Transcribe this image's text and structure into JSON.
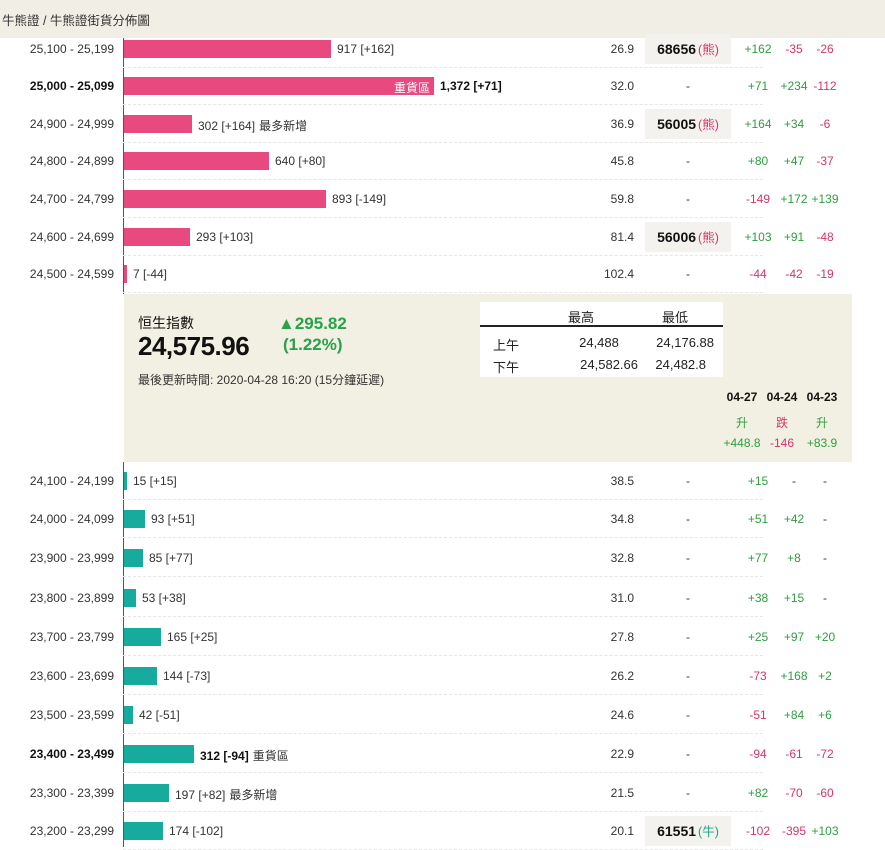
{
  "breadcrumb": "牛熊證 / 牛熊證街貨分佈圖",
  "upper_rows": [
    {
      "range": "25,100 - 25,199",
      "bar": 917,
      "label": "917 [+162]",
      "note": "",
      "bold": false,
      "pct": "26.9",
      "code": "68656",
      "kind": "熊",
      "c1": "+162",
      "c2": "-35",
      "c3": "-26"
    },
    {
      "range": "25,000 - 25,099",
      "bar": 1372,
      "label": "1,372 [+71]",
      "note": "",
      "inbar": "重貨區",
      "bold": true,
      "pct": "32.0",
      "code": "-",
      "kind": "",
      "c1": "+71",
      "c2": "+234",
      "c3": "-112"
    },
    {
      "range": "24,900 - 24,999",
      "bar": 302,
      "label": "302 [+164]",
      "note": "最多新增",
      "bold": false,
      "pct": "36.9",
      "code": "56005",
      "kind": "熊",
      "c1": "+164",
      "c2": "+34",
      "c3": "-6"
    },
    {
      "range": "24,800 - 24,899",
      "bar": 640,
      "label": "640 [+80]",
      "note": "",
      "bold": false,
      "pct": "45.8",
      "code": "-",
      "kind": "",
      "c1": "+80",
      "c2": "+47",
      "c3": "-37"
    },
    {
      "range": "24,700 - 24,799",
      "bar": 893,
      "label": "893 [-149]",
      "note": "",
      "bold": false,
      "pct": "59.8",
      "code": "-",
      "kind": "",
      "c1": "-149",
      "c2": "+172",
      "c3": "+139"
    },
    {
      "range": "24,600 - 24,699",
      "bar": 293,
      "label": "293 [+103]",
      "note": "",
      "bold": false,
      "pct": "81.4",
      "code": "56006",
      "kind": "熊",
      "c1": "+103",
      "c2": "+91",
      "c3": "-48"
    },
    {
      "range": "24,500 - 24,599",
      "bar": 7,
      "label": "7 [-44]",
      "note": "",
      "bold": false,
      "pct": "102.4",
      "code": "-",
      "kind": "",
      "c1": "-44",
      "c2": "-42",
      "c3": "-19"
    }
  ],
  "lower_rows": [
    {
      "range": "24,100 - 24,199",
      "bar": 15,
      "label": "15 [+15]",
      "note": "",
      "bold": false,
      "pct": "38.5",
      "code": "-",
      "kind": "",
      "c1": "+15",
      "c2": "-",
      "c3": "-"
    },
    {
      "range": "24,000 - 24,099",
      "bar": 93,
      "label": "93 [+51]",
      "note": "",
      "bold": false,
      "pct": "34.8",
      "code": "-",
      "kind": "",
      "c1": "+51",
      "c2": "+42",
      "c3": "-"
    },
    {
      "range": "23,900 - 23,999",
      "bar": 85,
      "label": "85 [+77]",
      "note": "",
      "bold": false,
      "pct": "32.8",
      "code": "-",
      "kind": "",
      "c1": "+77",
      "c2": "+8",
      "c3": "-"
    },
    {
      "range": "23,800 - 23,899",
      "bar": 53,
      "label": "53 [+38]",
      "note": "",
      "bold": false,
      "pct": "31.0",
      "code": "-",
      "kind": "",
      "c1": "+38",
      "c2": "+15",
      "c3": "-"
    },
    {
      "range": "23,700 - 23,799",
      "bar": 165,
      "label": "165 [+25]",
      "note": "",
      "bold": false,
      "pct": "27.8",
      "code": "-",
      "kind": "",
      "c1": "+25",
      "c2": "+97",
      "c3": "+20"
    },
    {
      "range": "23,600 - 23,699",
      "bar": 144,
      "label": "144 [-73]",
      "note": "",
      "bold": false,
      "pct": "26.2",
      "code": "-",
      "kind": "",
      "c1": "-73",
      "c2": "+168",
      "c3": "+2"
    },
    {
      "range": "23,500 - 23,599",
      "bar": 42,
      "label": "42 [-51]",
      "note": "",
      "bold": false,
      "pct": "24.6",
      "code": "-",
      "kind": "",
      "c1": "-51",
      "c2": "+84",
      "c3": "+6"
    },
    {
      "range": "23,400 - 23,499",
      "bar": 312,
      "label": "312 [-94]",
      "note": "重貨區",
      "bold": true,
      "pct": "22.9",
      "code": "-",
      "kind": "",
      "c1": "-94",
      "c2": "-61",
      "c3": "-72"
    },
    {
      "range": "23,300 - 23,399",
      "bar": 197,
      "label": "197 [+82]",
      "note": "最多新增",
      "bold": false,
      "pct": "21.5",
      "code": "-",
      "kind": "",
      "c1": "+82",
      "c2": "-70",
      "c3": "-60"
    },
    {
      "range": "23,200 - 23,299",
      "bar": 174,
      "label": "174 [-102]",
      "note": "",
      "bold": false,
      "pct": "20.1",
      "code": "61551",
      "kind": "牛",
      "c1": "-102",
      "c2": "-395",
      "c3": "+103"
    }
  ],
  "index": {
    "title": "恒生指數",
    "value": "24,575.96",
    "change": "▲295.82",
    "change_pct": "(1.22%)",
    "update": "最後更新時間: 2020-04-28 16:20 (15分鐘延遲)"
  },
  "hilo": {
    "hdr_high": "最高",
    "hdr_low": "最低",
    "am_label": "上午",
    "am_high": "24,488",
    "am_low": "24,176.88",
    "pm_label": "下午",
    "pm_high": "24,582.66",
    "pm_low": "24,482.8"
  },
  "history": [
    {
      "date": "04-27",
      "dir": "升",
      "chg": "+448.8"
    },
    {
      "date": "04-24",
      "dir": "跌",
      "chg": "-146"
    },
    {
      "date": "04-23",
      "dir": "升",
      "chg": "+83.9"
    }
  ],
  "colors": {
    "bear_bar": "#e84a7f",
    "bull_bar": "#17ab9e",
    "up": "#2e9e3f",
    "down": "#d6336c"
  }
}
